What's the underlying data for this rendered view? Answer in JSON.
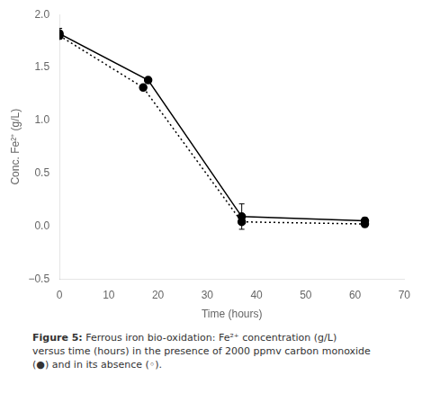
{
  "chart_data": {
    "type": "line",
    "xlabel": "Time (hours)",
    "ylabel": "Conc. Fe²⁺ (g/L)",
    "series": [
      {
        "color": "black",
        "line_style": "solid",
        "marker": "circle",
        "x": [
          0,
          18,
          37,
          62
        ],
        "values": [
          1.82,
          1.38,
          0.09,
          0.05
        ],
        "yerr": [
          0.05,
          0.0,
          0.12,
          0.03
        ]
      },
      {
        "color": "black",
        "line_style": "dotted",
        "marker": "circle",
        "x": [
          0,
          17,
          37,
          62
        ],
        "values": [
          1.8,
          1.31,
          0.04,
          0.02
        ],
        "yerr": [
          0.03,
          0.0,
          0.0,
          0.0
        ]
      }
    ],
    "xlim": [
      0,
      70
    ],
    "xticks": [
      0,
      10,
      20,
      30,
      40,
      50,
      60,
      70
    ],
    "ylim": [
      -0.5,
      2.0
    ],
    "yticks": [
      {
        "value": -0.5,
        "label": "−0.5"
      },
      {
        "value": 0,
        "label": "0.0"
      },
      {
        "value": 0.5,
        "label": "0.5"
      },
      {
        "value": 1,
        "label": "1.0"
      },
      {
        "value": 1.5,
        "label": "1.5"
      },
      {
        "value": 2,
        "label": "2.0"
      }
    ],
    "grid": false,
    "annotations": [
      "Figure 5:",
      "Ferrous iron bio-oxidation: Fe²⁺ concentration (g/L)\nversus time (hours) in the presence of 2000 ppmv carbon monoxide\n(●) and in its absence (◦)."
    ]
  }
}
